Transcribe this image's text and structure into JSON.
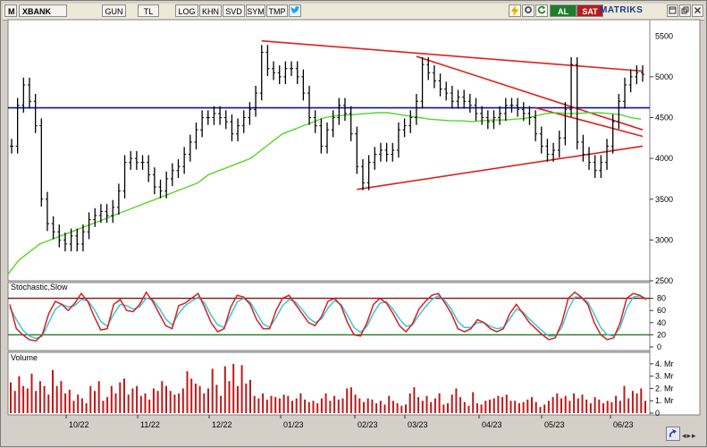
{
  "toolbar": {
    "menu_label": "M",
    "symbol": "XBANK",
    "buttons": [
      "GUN",
      "TL",
      "LOG",
      "KHN",
      "SVD",
      "SYM",
      "TMP"
    ],
    "al_label": "AL",
    "sat_label": "SAT",
    "brand": "MATRIKS",
    "icons": [
      "twitter-icon",
      "flash-icon",
      "settings-icon",
      "refresh-icon",
      "window-icon",
      "restore-icon",
      "close-icon"
    ]
  },
  "chart_data": [
    {
      "type": "line",
      "panel": "price",
      "series": [
        {
          "values": [
            4150,
            4650,
            4900,
            4700,
            4400,
            3500,
            3200,
            3100,
            3000,
            2950,
            3050,
            2950,
            3100,
            3250,
            3300,
            3350,
            3300,
            3400,
            3600,
            3950,
            4000,
            3950,
            3950,
            3800,
            3650,
            3600,
            3750,
            3850,
            3900,
            4050,
            4200,
            4350,
            4500,
            4500,
            4550,
            4500,
            4450,
            4300,
            4400,
            4500,
            4600,
            4800,
            5300,
            5100,
            5050,
            5000,
            5100,
            5100,
            5000,
            4800,
            4500,
            4400,
            4150,
            4350,
            4500,
            4650,
            4550,
            4300,
            3900,
            3700,
            3950,
            4050,
            4100,
            4050,
            4100,
            4350,
            4400,
            4500,
            4700,
            5150,
            5050,
            4950,
            4850,
            4800,
            4700,
            4750,
            4700,
            4650,
            4550,
            4500,
            4450,
            4500,
            4550,
            4650,
            4650,
            4600,
            4550,
            4500,
            4300,
            4150,
            4050,
            4100,
            4250,
            4600,
            5150,
            4200,
            4050,
            3950,
            3850,
            3950,
            4150,
            4450,
            4700,
            4900,
            5000,
            5050,
            5030
          ]
        },
        {
          "values": [
            2580,
            2750,
            2850,
            2950,
            3000,
            3050,
            3100,
            3150,
            3200,
            3250,
            3300,
            3350,
            3400,
            3450,
            3500,
            3550,
            3600,
            3650,
            3700,
            3800,
            3850,
            3900,
            3950,
            4000,
            4100,
            4200,
            4300,
            4350,
            4400,
            4450,
            4500,
            4520,
            4530,
            4540,
            4550,
            4560,
            4560,
            4540,
            4520,
            4500,
            4480,
            4470,
            4460,
            4460,
            4450,
            4460,
            4470,
            4470,
            4480,
            4490,
            4520,
            4550,
            4560,
            4550,
            4550,
            4560,
            4560,
            4550,
            4540,
            4500,
            4480
          ]
        }
      ],
      "ylim": [
        2500,
        5700
      ],
      "yticks": [
        "5000",
        "4500",
        "4000",
        "3500",
        "3000",
        "2500"
      ],
      "yticks_partial": [
        "5500",
        "5000"
      ],
      "hline": 4620,
      "trendlines": "red resistance and support lines",
      "xticks": [
        "10/22",
        "11/22",
        "12/22",
        "01/23",
        "02/23",
        "03/23",
        "04/23",
        "05/23",
        "06/23"
      ]
    },
    {
      "type": "line",
      "panel": "stochastic",
      "title": "Stochastic,Slow",
      "ylim": [
        0,
        100
      ],
      "yticks": [
        "80",
        "60",
        "40",
        "20",
        "0"
      ],
      "levels": [
        80,
        20
      ],
      "series": [
        {
          "color": "#d62020",
          "values": [
            70,
            30,
            20,
            12,
            10,
            20,
            55,
            75,
            70,
            60,
            72,
            88,
            75,
            50,
            28,
            30,
            70,
            78,
            60,
            58,
            70,
            90,
            75,
            55,
            35,
            30,
            68,
            72,
            80,
            88,
            65,
            40,
            25,
            30,
            65,
            85,
            82,
            70,
            45,
            30,
            30,
            60,
            80,
            85,
            70,
            55,
            40,
            35,
            50,
            75,
            80,
            68,
            40,
            20,
            18,
            40,
            70,
            80,
            72,
            55,
            35,
            25,
            38,
            62,
            75,
            85,
            88,
            72,
            55,
            30,
            25,
            30,
            45,
            40,
            30,
            25,
            30,
            55,
            70,
            55,
            40,
            30,
            20,
            12,
            15,
            40,
            80,
            90,
            82,
            70,
            40,
            20,
            12,
            15,
            40,
            80,
            88,
            85,
            78
          ]
        },
        {
          "color": "#3fc4d6",
          "values": [
            65,
            45,
            28,
            18,
            14,
            18,
            40,
            62,
            70,
            66,
            68,
            78,
            76,
            62,
            42,
            34,
            54,
            70,
            68,
            62,
            66,
            80,
            78,
            64,
            46,
            36,
            55,
            68,
            75,
            82,
            72,
            52,
            36,
            32,
            52,
            74,
            80,
            74,
            56,
            38,
            32,
            48,
            68,
            78,
            74,
            62,
            48,
            40,
            46,
            64,
            76,
            70,
            52,
            32,
            24,
            34,
            56,
            72,
            74,
            62,
            46,
            34,
            36,
            52,
            66,
            78,
            84,
            76,
            62,
            42,
            32,
            32,
            40,
            40,
            34,
            30,
            32,
            46,
            62,
            58,
            46,
            36,
            26,
            18,
            18,
            32,
            62,
            82,
            82,
            74,
            54,
            32,
            20,
            18,
            32,
            64,
            82,
            84,
            80
          ]
        }
      ]
    },
    {
      "type": "bar",
      "panel": "volume",
      "title": "Volume",
      "ylim": [
        0,
        4.5
      ],
      "yticks": [
        "4. Mr",
        "3. Mr",
        "2. Mr",
        "1. Mr",
        "0"
      ],
      "values": [
        2.5,
        1.8,
        3.0,
        2.2,
        2.0,
        3.2,
        1.8,
        2.6,
        2.2,
        1.5,
        3.5,
        2.2,
        2.6,
        1.6,
        1.9,
        1.0,
        1.5,
        1.2,
        0.8,
        2.2,
        1.8,
        2.6,
        1.0,
        1.3,
        2.2,
        1.6,
        2.5,
        2.8,
        1.5,
        2.0,
        2.2,
        1.4,
        1.6,
        1.1,
        2.0,
        1.8,
        2.6,
        2.2,
        1.8,
        1.5,
        1.6,
        2.0,
        3.4,
        2.8,
        2.4,
        2.2,
        1.6,
        2.0,
        3.6,
        2.3,
        1.4,
        3.8,
        2.6,
        4.0,
        2.2,
        3.9,
        2.4,
        2.7,
        1.4,
        1.2,
        1.6,
        1.1,
        1.4,
        1.3,
        1.2,
        1.5,
        1.4,
        1.0,
        1.2,
        1.6,
        1.1,
        0.9,
        1.0,
        0.8,
        1.2,
        1.6,
        1.0,
        1.4,
        1.1,
        1.2,
        2.0,
        2.1,
        1.5,
        1.2,
        0.9,
        1.2,
        1.1,
        0.8,
        1.0,
        0.7,
        1.4,
        1.0,
        0.8,
        0.6,
        0.7,
        1.6,
        2.1,
        1.3,
        1.0,
        1.4,
        0.9,
        1.2,
        1.6,
        0.7,
        0.8,
        1.5,
        2.0,
        1.3,
        0.9,
        0.6,
        1.7,
        0.8,
        0.7,
        1.0,
        1.1,
        1.2,
        1.4,
        1.3,
        1.5,
        1.0,
        1.0,
        0.8,
        0.9,
        1.1,
        1.3,
        0.9,
        0.5,
        0.7,
        1.0,
        1.3,
        1.6,
        1.2,
        1.4,
        1.0,
        1.6,
        1.2,
        1.5,
        1.1,
        0.8,
        1.3,
        1.1,
        0.8,
        1.0,
        0.9,
        1.4,
        1.0,
        2.2,
        1.2,
        1.8,
        1.6,
        2.0,
        1.0
      ]
    }
  ]
}
